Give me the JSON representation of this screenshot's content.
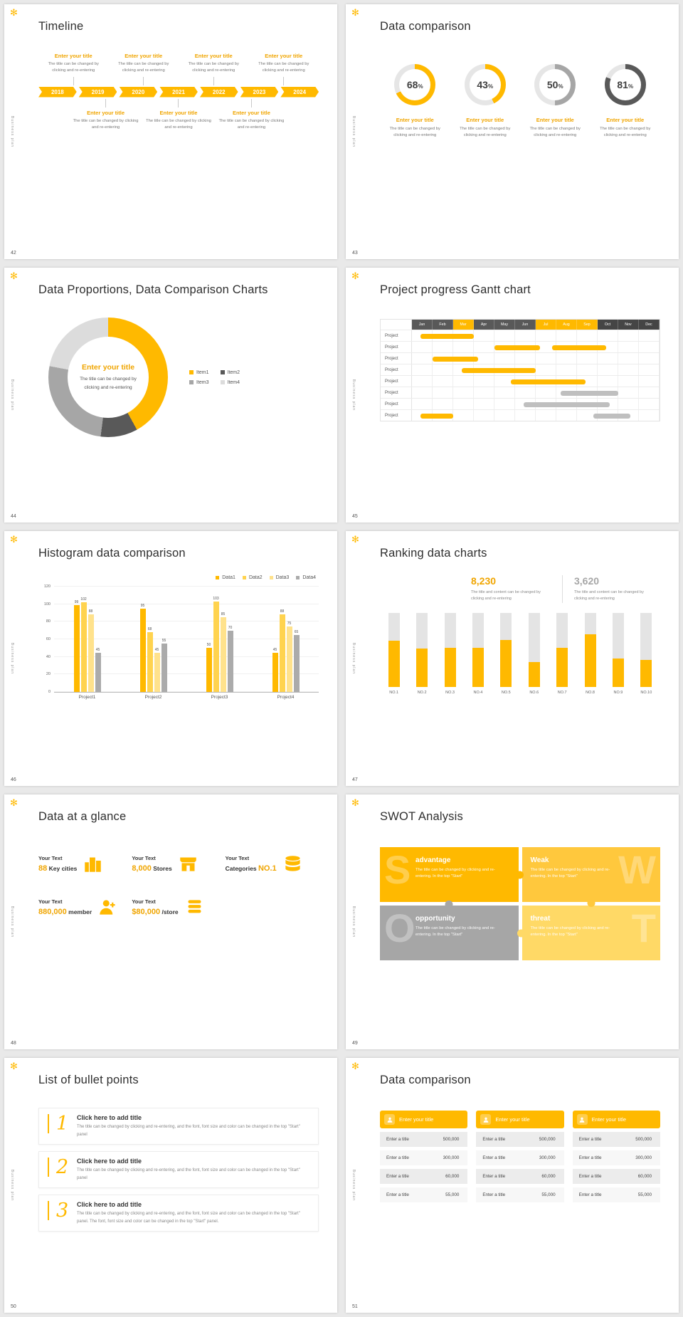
{
  "page": {
    "bg": "#e9e9e9",
    "accent": "#FFB900",
    "accent_text": "#F0A500",
    "track": "#E6E6E6",
    "gray": "#A6A6A6",
    "dark": "#595959",
    "percent_sign": "%"
  },
  "common": {
    "flower": "✻",
    "brand_vertical": "Business plan"
  },
  "slides": {
    "s42": {
      "number": "42",
      "title": "Timeline",
      "item_title": "Enter your title",
      "item_caption": "The title can be changed by clicking and re-entering",
      "years": [
        "2018",
        "2019",
        "2020",
        "2021",
        "2022",
        "2023",
        "2024"
      ]
    },
    "s43": {
      "number": "43",
      "title": "Data comparison",
      "type": "donut-progress",
      "item_title": "Enter your title",
      "item_caption": "The title can be changed by clicking and re-entering",
      "rings": [
        {
          "pct": 68,
          "color": "#FFB900"
        },
        {
          "pct": 43,
          "color": "#FFB900"
        },
        {
          "pct": 50,
          "color": "#A6A6A6"
        },
        {
          "pct": 81,
          "color": "#595959"
        }
      ]
    },
    "s44": {
      "number": "44",
      "title": "Data Proportions, Data Comparison Charts",
      "type": "donut",
      "center_title": "Enter your title",
      "center_caption": "The title can be changed by clicking and re-entering",
      "segments": [
        {
          "label": "Item1",
          "value": 42,
          "color": "#FFB900"
        },
        {
          "label": "Item2",
          "value": 10,
          "color": "#595959"
        },
        {
          "label": "Item3",
          "value": 26,
          "color": "#A6A6A6"
        },
        {
          "label": "Item4",
          "value": 22,
          "color": "#DCDCDC"
        }
      ]
    },
    "s45": {
      "number": "45",
      "title": "Project progress Gantt chart",
      "type": "gantt",
      "months": [
        "Jan",
        "Feb",
        "Mar",
        "Apr",
        "May",
        "Jun",
        "Jul",
        "Aug",
        "Sep",
        "Oct",
        "Nov",
        "Dec"
      ],
      "highlight_months": [
        2,
        6,
        7,
        8
      ],
      "dark_months": [
        9,
        10,
        11
      ],
      "row_label": "Project",
      "rows": 8,
      "bars": [
        {
          "row": 0,
          "start": 0.4,
          "end": 3.0,
          "color": "#FFB900"
        },
        {
          "row": 1,
          "start": 4.0,
          "end": 6.2,
          "color": "#FFB900"
        },
        {
          "row": 1,
          "start": 6.8,
          "end": 9.4,
          "color": "#FFB900"
        },
        {
          "row": 2,
          "start": 1.0,
          "end": 3.2,
          "color": "#FFB900"
        },
        {
          "row": 3,
          "start": 2.4,
          "end": 6.0,
          "color": "#FFB900"
        },
        {
          "row": 4,
          "start": 4.8,
          "end": 8.4,
          "color": "#FFB900"
        },
        {
          "row": 5,
          "start": 7.2,
          "end": 10.0,
          "color": "#BFBFBF"
        },
        {
          "row": 6,
          "start": 5.4,
          "end": 9.6,
          "color": "#BFBFBF"
        },
        {
          "row": 7,
          "start": 0.4,
          "end": 2.0,
          "color": "#FFB900"
        },
        {
          "row": 7,
          "start": 8.8,
          "end": 10.6,
          "color": "#BFBFBF"
        }
      ]
    },
    "s46": {
      "number": "46",
      "title": "Histogram data comparison",
      "type": "bar",
      "legend": [
        "Data1",
        "Data2",
        "Data3",
        "Data4"
      ],
      "colors": [
        "#FFB900",
        "#FFD34F",
        "#FFE28C",
        "#ABABAB"
      ],
      "categories": [
        "Project1",
        "Project2",
        "Project3",
        "Project4"
      ],
      "series": [
        {
          "name": "Data1",
          "values": [
            99,
            95,
            50,
            45
          ]
        },
        {
          "name": "Data2",
          "values": [
            102,
            68,
            103,
            88
          ]
        },
        {
          "name": "Data3",
          "values": [
            88,
            45,
            85,
            75
          ]
        },
        {
          "name": "Data4",
          "values": [
            45,
            55,
            70,
            65
          ]
        }
      ],
      "y_ticks": [
        0,
        20,
        40,
        60,
        80,
        100,
        120
      ],
      "y_max": 120
    },
    "s47": {
      "number": "47",
      "title": "Ranking data charts",
      "type": "bar",
      "stat1": {
        "value": "8,230",
        "caption": "The title and content can be changed by clicking and re-entering",
        "color": "#F0A500"
      },
      "stat2": {
        "value": "3,620",
        "caption": "The title and content can be changed by clicking and re-entering",
        "color": "#A6A6A6"
      },
      "labels": [
        "NO.1",
        "NO.2",
        "NO.3",
        "NO.4",
        "NO.5",
        "NO.6",
        "NO.7",
        "NO.8",
        "NO.9",
        "NO.10"
      ],
      "values_pct": [
        62,
        52,
        53,
        53,
        63,
        33,
        53,
        71,
        38,
        36
      ]
    },
    "s48": {
      "number": "48",
      "title": "Data at a glance",
      "stats": [
        {
          "label": "Your Text",
          "num": "88",
          "unit": "Key cities",
          "icon": "buildings-icon"
        },
        {
          "label": "Your Text",
          "num": "8,000",
          "unit": "Stores",
          "icon": "store-icon"
        },
        {
          "label": "Your Text",
          "unit": "Categories",
          "num": "NO.1",
          "icon": "categories-icon"
        },
        {
          "label": "Your Text",
          "num": "880,000",
          "unit": "member",
          "icon": "member-icon"
        },
        {
          "label": "Your Text",
          "num": "$80,000",
          "unit": "/store",
          "icon": "coins-icon"
        }
      ]
    },
    "s49": {
      "number": "49",
      "title": "SWOT Analysis",
      "quadrants": [
        {
          "letter": "S",
          "heading": "advantage",
          "body": "The title can be changed by clicking and re-entering. In the top \"Start\"",
          "color": "#FFB900"
        },
        {
          "letter": "W",
          "heading": "Weak",
          "body": "The title can be changed by clicking and re-entering. In the top \"Start\"",
          "color": "#FFC83D"
        },
        {
          "letter": "O",
          "heading": "opportunity",
          "body": "The title can be changed by clicking and re-entering. In the top \"Start\"",
          "color": "#A6A6A6"
        },
        {
          "letter": "T",
          "heading": "threat",
          "body": "The title can be changed by clicking and re-entering. In the top \"Start\"",
          "color": "#FFD966"
        }
      ]
    },
    "s50": {
      "number": "50",
      "title": "List of bullet points",
      "items": [
        {
          "num": "1",
          "heading": "Click here to add title",
          "body": "The title can be changed by clicking and re-entering, and the font, font size and color can be changed in the top \"Start\" panel"
        },
        {
          "num": "2",
          "heading": "Click here to add title",
          "body": "The title can be changed by clicking and re-entering, and the font, font size and color can be changed in the top \"Start\" panel"
        },
        {
          "num": "3",
          "heading": "Click here to add title",
          "body": "The title can be changed by clicking and re-entering, and the font, font size and color can be changed in the top \"Start\" panel. The font, font size and color can be changed in the top \"Start\" panel."
        }
      ]
    },
    "s51": {
      "number": "51",
      "title": "Data comparison",
      "cards": [
        {
          "header": "Enter your title",
          "rows": [
            [
              "Enter a title",
              "500,000"
            ],
            [
              "Enter a title",
              "300,000"
            ],
            [
              "Enter a title",
              "60,000"
            ],
            [
              "Enter a title",
              "55,000"
            ]
          ]
        },
        {
          "header": "Enter your title",
          "rows": [
            [
              "Enter a title",
              "500,000"
            ],
            [
              "Enter a title",
              "300,000"
            ],
            [
              "Enter a title",
              "60,000"
            ],
            [
              "Enter a title",
              "55,000"
            ]
          ]
        },
        {
          "header": "Enter your title",
          "rows": [
            [
              "Enter a title",
              "500,000"
            ],
            [
              "Enter a title",
              "300,000"
            ],
            [
              "Enter a title",
              "60,000"
            ],
            [
              "Enter a title",
              "55,000"
            ]
          ]
        }
      ]
    }
  }
}
